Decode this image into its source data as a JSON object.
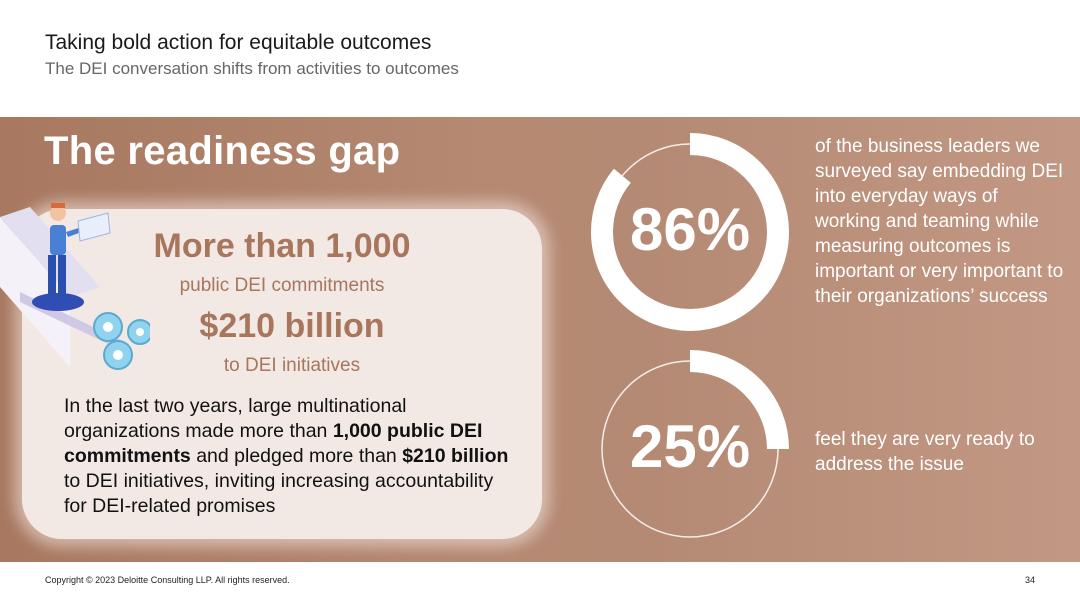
{
  "header": {
    "title": "Taking bold action for equitable outcomes",
    "subtitle": "The DEI conversation shifts from activities to outcomes"
  },
  "section": {
    "title": "The readiness gap"
  },
  "card": {
    "stat1_value": "More than 1,000",
    "stat1_label": "public DEI commitments",
    "stat2_value": "$210 billion",
    "stat2_label": "to DEI initiatives",
    "paragraph": {
      "p1": "In the last two years, large multinational organizations made more than ",
      "b1": "1,000 public DEI commitments",
      "p2": " and pledged more than ",
      "b2": "$210 billion",
      "p3": " to DEI initiatives, inviting increasing accountability for DEI-related promises"
    }
  },
  "stats": [
    {
      "percent_label": "86%",
      "percent_value": 86,
      "description": "of the business leaders we surveyed say embedding DEI into everyday ways of working and teaming while measuring outcomes is important or very important to their organizations’ success"
    },
    {
      "percent_label": "25%",
      "percent_value": 25,
      "description": "feel they are very ready to address the issue"
    }
  ],
  "colors": {
    "band": "#b58972",
    "accent_text": "#a8765c",
    "card_bg": "#f3e9e4",
    "ring": "#ffffff"
  },
  "footer": {
    "copyright": "Copyright © 2023 Deloitte Consulting LLP. All rights reserved.",
    "page_number": "34"
  }
}
